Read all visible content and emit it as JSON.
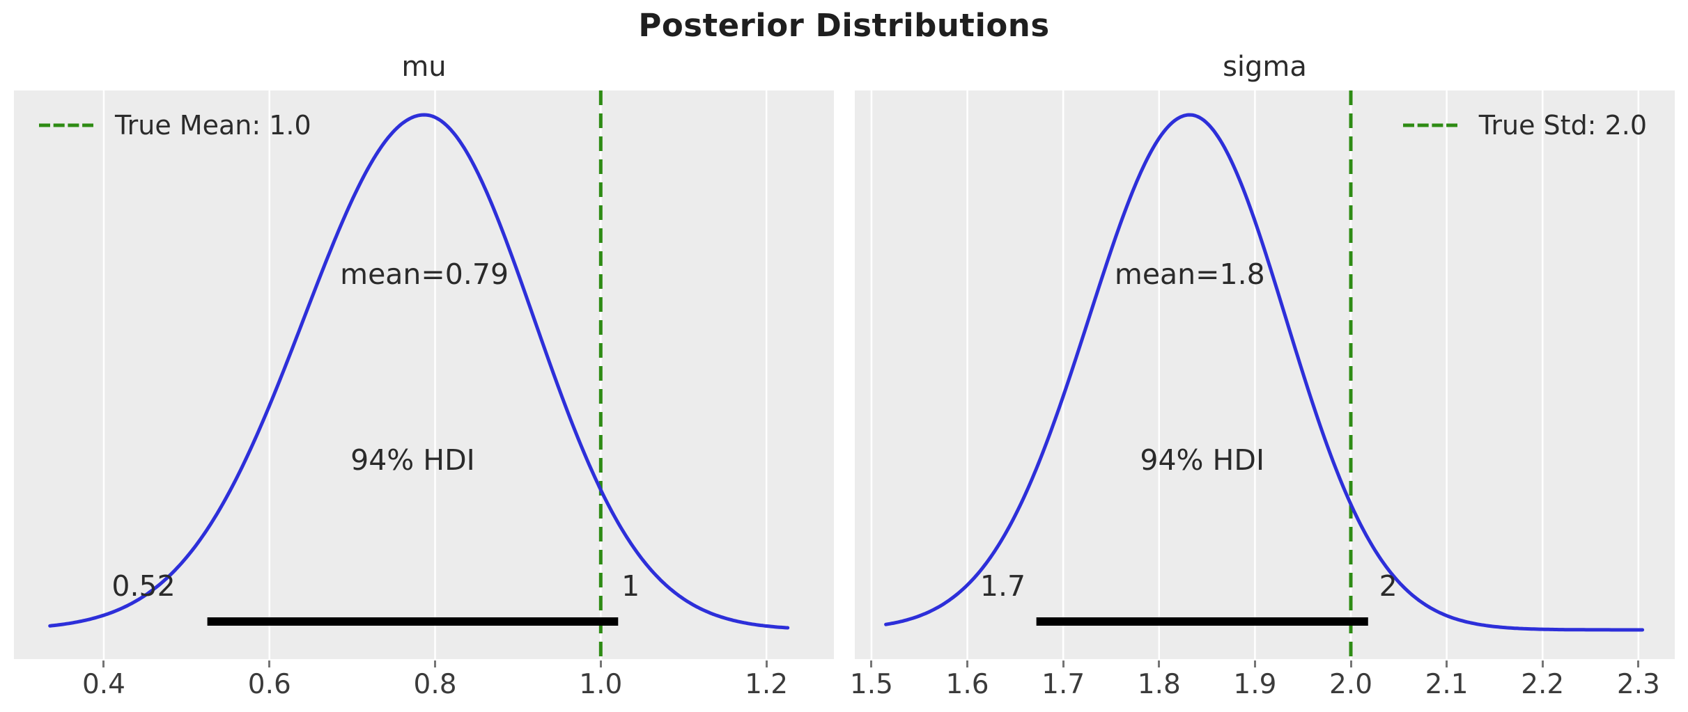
{
  "title": "Posterior Distributions",
  "colors": {
    "curve": "#2d2fd9",
    "true_line": "#2e8b14",
    "hdi_bar": "#000000",
    "panel_bg": "#ececec",
    "grid": "#ffffff",
    "tick": "#757575",
    "text": "#2a2a2a"
  },
  "chart_data": [
    {
      "type": "line",
      "title": "mu",
      "series_name": "posterior density of mu",
      "xlim": [
        0.2915,
        1.2815
      ],
      "x_ticks": [
        0.4,
        0.6,
        0.8,
        1.0,
        1.2
      ],
      "x_tick_labels": [
        "0.4",
        "0.6",
        "0.8",
        "1.0",
        "1.2"
      ],
      "grid": "vertical-white",
      "curve": {
        "shape": "kde-gaussian",
        "x_start": 0.335,
        "x_end": 1.228,
        "peak_x": 0.787,
        "sigma_left": 0.145,
        "sigma_right": 0.132
      },
      "mean": 0.79,
      "mean_label": "mean=0.79",
      "hdi": {
        "text": "94% HDI",
        "low": 0.52,
        "high": 1.0,
        "low_label": "0.52",
        "high_label": "1",
        "bar_start": 0.525,
        "bar_end": 1.021,
        "low_label_x": 0.448,
        "high_label_x": 1.036
      },
      "true_line": {
        "value": 1.0,
        "legend": "True Mean: 1.0",
        "legend_side": "left"
      }
    },
    {
      "type": "line",
      "title": "sigma",
      "series_name": "posterior density of sigma",
      "xlim": [
        1.4826,
        2.3379
      ],
      "x_ticks": [
        1.5,
        1.6,
        1.7,
        1.8,
        1.9,
        2.0,
        2.1,
        2.2,
        2.3
      ],
      "x_tick_labels": [
        "1.5",
        "1.6",
        "1.7",
        "1.8",
        "1.9",
        "2.0",
        "2.1",
        "2.2",
        "2.3"
      ],
      "grid": "vertical-white",
      "curve": {
        "shape": "kde-gaussian",
        "x_start": 1.515,
        "x_end": 2.305,
        "peak_x": 1.832,
        "sigma_left": 0.105,
        "sigma_right": 0.1
      },
      "mean": 1.8,
      "mean_label": "mean=1.8",
      "hdi": {
        "text": "94% HDI",
        "low": 1.7,
        "high": 2.0,
        "low_label": "1.7",
        "high_label": "2",
        "bar_start": 1.672,
        "bar_end": 2.018,
        "low_label_x": 1.637,
        "high_label_x": 2.039
      },
      "true_line": {
        "value": 2.0,
        "legend": "True Std: 2.0",
        "legend_side": "right"
      }
    }
  ]
}
